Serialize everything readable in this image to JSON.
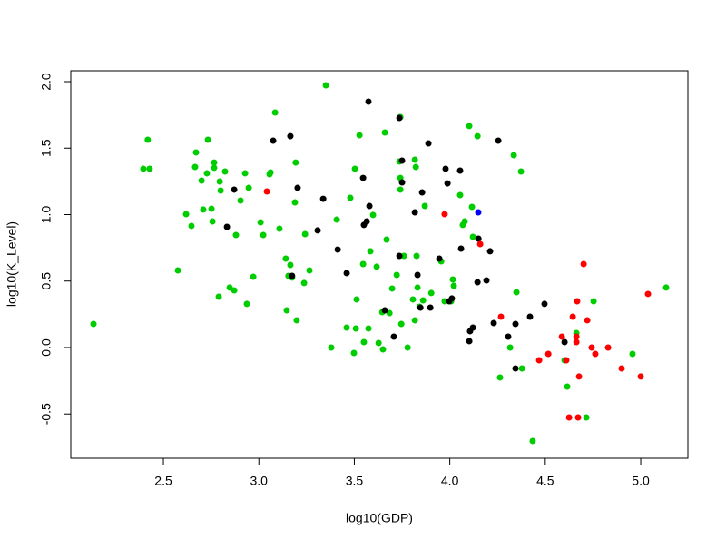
{
  "chart_data": {
    "type": "scatter",
    "xlabel": "log10(GDP)",
    "ylabel": "log10(K_Level)",
    "xlim": [
      2.015,
      5.247
    ],
    "ylim": [
      -0.833,
      2.082
    ],
    "xticks": [
      2.5,
      {
        "value": 3.0,
        "label": "3.0"
      },
      3.5,
      {
        "value": 4.0,
        "label": "4.0"
      },
      4.5,
      {
        "value": 5.0,
        "label": "5.0"
      }
    ],
    "yticks": [
      -0.5,
      {
        "value": 0.0,
        "label": "0.0"
      },
      0.5,
      {
        "value": 1.0,
        "label": "1.0"
      },
      1.5,
      {
        "value": 2.0,
        "label": "2.0"
      }
    ],
    "series": [
      {
        "color": "#00cd00",
        "x": [
          2.134,
          2.395,
          2.428,
          2.418,
          2.576,
          2.619,
          2.647,
          2.671,
          2.666,
          2.7,
          2.709,
          2.728,
          2.733,
          2.752,
          2.757,
          2.766,
          2.766,
          2.79,
          2.795,
          2.8,
          2.823,
          2.847,
          2.871,
          2.88,
          2.904,
          2.928,
          2.937,
          2.947,
          2.971,
          3.009,
          3.023,
          3.056,
          3.061,
          3.085,
          3.108,
          3.141,
          3.146,
          3.155,
          3.165,
          3.174,
          3.189,
          3.193,
          3.198,
          3.237,
          3.242,
          3.265,
          3.351,
          3.379,
          3.408,
          3.46,
          3.479,
          3.498,
          3.503,
          3.508,
          3.512,
          3.527,
          3.546,
          3.55,
          3.574,
          3.584,
          3.598,
          3.617,
          3.627,
          3.646,
          3.65,
          3.66,
          3.669,
          3.684,
          3.698,
          3.722,
          3.736,
          3.741,
          3.741,
          3.741,
          3.746,
          3.76,
          3.779,
          3.807,
          3.817,
          3.817,
          3.822,
          3.831,
          3.826,
          3.841,
          3.86,
          3.869,
          3.903,
          3.955,
          3.973,
          4.007,
          4.016,
          4.021,
          4.054,
          4.068,
          4.078,
          4.102,
          4.116,
          4.121,
          4.145,
          4.335,
          4.349,
          4.373,
          4.378,
          4.263,
          4.316,
          4.434,
          4.601,
          4.615,
          4.663,
          4.715,
          4.753,
          4.957,
          5.133
        ],
        "values": [
          0.177,
          1.345,
          1.345,
          1.563,
          0.58,
          1.003,
          0.915,
          1.468,
          1.358,
          1.256,
          1.038,
          1.311,
          1.563,
          1.044,
          0.949,
          1.392,
          1.352,
          0.382,
          1.249,
          1.181,
          1.324,
          0.451,
          0.43,
          0.846,
          1.106,
          1.311,
          0.328,
          1.201,
          0.532,
          0.942,
          0.846,
          1.304,
          1.317,
          1.768,
          0.894,
          0.669,
          0.28,
          0.539,
          0.621,
          0.526,
          1.092,
          1.392,
          0.205,
          0.485,
          0.853,
          0.58,
          1.973,
          0.0,
          0.962,
          0.15,
          1.126,
          -0.041,
          1.345,
          0.143,
          0.362,
          1.597,
          0.628,
          0.041,
          0.143,
          0.724,
          0.997,
          0.608,
          0.034,
          0.266,
          -0.014,
          1.618,
          0.812,
          0.259,
          0.444,
          0.546,
          1.399,
          1.188,
          1.276,
          1.734,
          0.177,
          0.689,
          0.0,
          0.362,
          0.205,
          1.413,
          1.358,
          0.451,
          0.689,
          0.307,
          0.355,
          1.065,
          0.41,
          0.648,
          0.348,
          0.348,
          0.512,
          0.464,
          1.147,
          0.922,
          0.949,
          1.666,
          1.058,
          0.833,
          1.59,
          1.447,
          0.416,
          1.324,
          -0.157,
          -0.225,
          0.0,
          -0.703,
          -0.096,
          -0.294,
          0.109,
          -0.526,
          0.348,
          -0.048,
          0.451
        ]
      },
      {
        "color": "#000000",
        "x": [
          2.833,
          2.871,
          3.075,
          3.165,
          3.174,
          3.203,
          3.308,
          3.337,
          3.413,
          3.46,
          3.546,
          3.55,
          3.565,
          3.574,
          3.579,
          3.66,
          3.707,
          3.736,
          3.736,
          3.75,
          3.75,
          3.817,
          3.831,
          3.846,
          3.855,
          3.888,
          3.898,
          3.945,
          3.978,
          3.988,
          3.997,
          4.011,
          4.054,
          4.059,
          4.102,
          4.106,
          4.121,
          4.145,
          4.15,
          4.192,
          4.211,
          4.23,
          4.254,
          4.306,
          4.344,
          4.344,
          4.42,
          4.496,
          4.601
        ],
        "values": [
          0.908,
          1.188,
          1.556,
          1.59,
          0.539,
          1.201,
          0.881,
          1.119,
          0.737,
          0.56,
          1.276,
          0.922,
          0.949,
          1.85,
          1.065,
          0.28,
          0.082,
          0.689,
          1.727,
          1.406,
          1.242,
          1.017,
          0.546,
          0.3,
          1.167,
          1.536,
          0.3,
          0.669,
          1.345,
          1.235,
          0.348,
          0.369,
          1.331,
          0.744,
          0.048,
          0.123,
          0.15,
          0.491,
          0.819,
          0.505,
          0.724,
          0.184,
          1.556,
          0.082,
          0.177,
          -0.157,
          0.232,
          0.328,
          0.041
        ]
      },
      {
        "color": "#ff0000",
        "x": [
          3.042,
          3.973,
          4.159,
          4.268,
          4.468,
          4.516,
          4.587,
          4.61,
          4.625,
          4.644,
          4.663,
          4.663,
          4.667,
          4.672,
          4.677,
          4.701,
          4.72,
          4.743,
          4.762,
          4.829,
          4.9,
          5.0,
          5.038
        ],
        "values": [
          1.174,
          1.003,
          0.778,
          0.232,
          -0.096,
          -0.048,
          0.082,
          -0.096,
          -0.526,
          0.232,
          0.082,
          0.041,
          0.348,
          -0.526,
          -0.218,
          0.628,
          0.205,
          0.0,
          -0.048,
          0.0,
          -0.157,
          -0.218,
          0.403
        ]
      },
      {
        "color": "#0000ff",
        "x": [
          4.149
        ],
        "values": [
          1.017
        ]
      }
    ]
  }
}
